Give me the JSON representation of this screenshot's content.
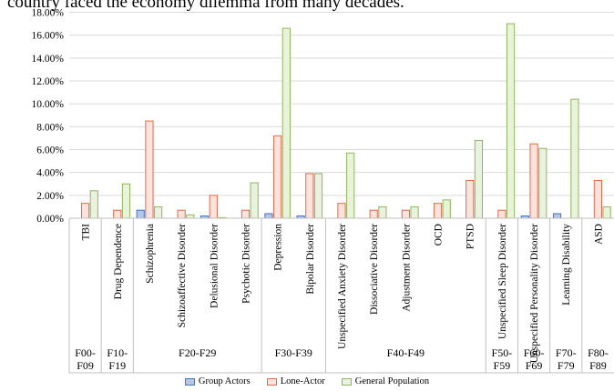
{
  "caption": "country faced the economy dilemma from many decades.",
  "chart_data": {
    "type": "bar",
    "ylim": [
      0,
      18
    ],
    "y_ticks": [
      "0.00%",
      "2.00%",
      "4.00%",
      "6.00%",
      "8.00%",
      "10.00%",
      "12.00%",
      "14.00%",
      "16.00%",
      "18.00%"
    ],
    "categories": [
      "TBI",
      "Drug Dependence",
      "Schizophrenia",
      "Schizoaffective Disorder",
      "Delusional Disorder",
      "Psychotic Disorder",
      "Depression",
      "Bipolar Disorder",
      "Unspecified Anxiety Disorder",
      "Dissociative Disorder",
      "Adjustment Disorder",
      "OCD",
      "PTSD",
      "Unspecified Sleep Disorder",
      "Unspecified Personality Disorder",
      "Learning Disability",
      "ASD"
    ],
    "groups": [
      {
        "label": "F00-F09",
        "count": 1
      },
      {
        "label": "F10-F19",
        "count": 1
      },
      {
        "label": "F20-F29",
        "count": 4
      },
      {
        "label": "F30-F39",
        "count": 2
      },
      {
        "label": "F40-F49",
        "count": 5
      },
      {
        "label": "F50-F59",
        "count": 1
      },
      {
        "label": "F60-F69",
        "count": 1
      },
      {
        "label": "F70-F79",
        "count": 1
      },
      {
        "label": "F80-F89",
        "count": 1
      }
    ],
    "series": [
      {
        "name": "Group Actors",
        "color": "#4472c4",
        "fill": "#b4c7e7",
        "values": [
          0,
          0,
          0.7,
          0,
          0.2,
          0,
          0.4,
          0.2,
          0,
          0,
          0,
          0,
          0,
          0,
          0.2,
          0.4,
          0
        ]
      },
      {
        "name": "Lone-Actor",
        "color": "#e0694e",
        "fill": "#fbe3dc",
        "values": [
          1.3,
          0.7,
          8.5,
          0.7,
          2.0,
          0.7,
          7.2,
          3.9,
          1.3,
          0.7,
          0.7,
          1.3,
          3.3,
          0.7,
          6.5,
          0,
          3.3
        ]
      },
      {
        "name": "General Population",
        "color": "#8fb65a",
        "fill": "#e9f2dc",
        "values": [
          2.4,
          3.0,
          1.0,
          0.3,
          0.05,
          3.1,
          16.6,
          3.9,
          5.7,
          1.0,
          1.0,
          1.6,
          6.8,
          17.0,
          6.1,
          10.4,
          1.0
        ]
      }
    ]
  }
}
